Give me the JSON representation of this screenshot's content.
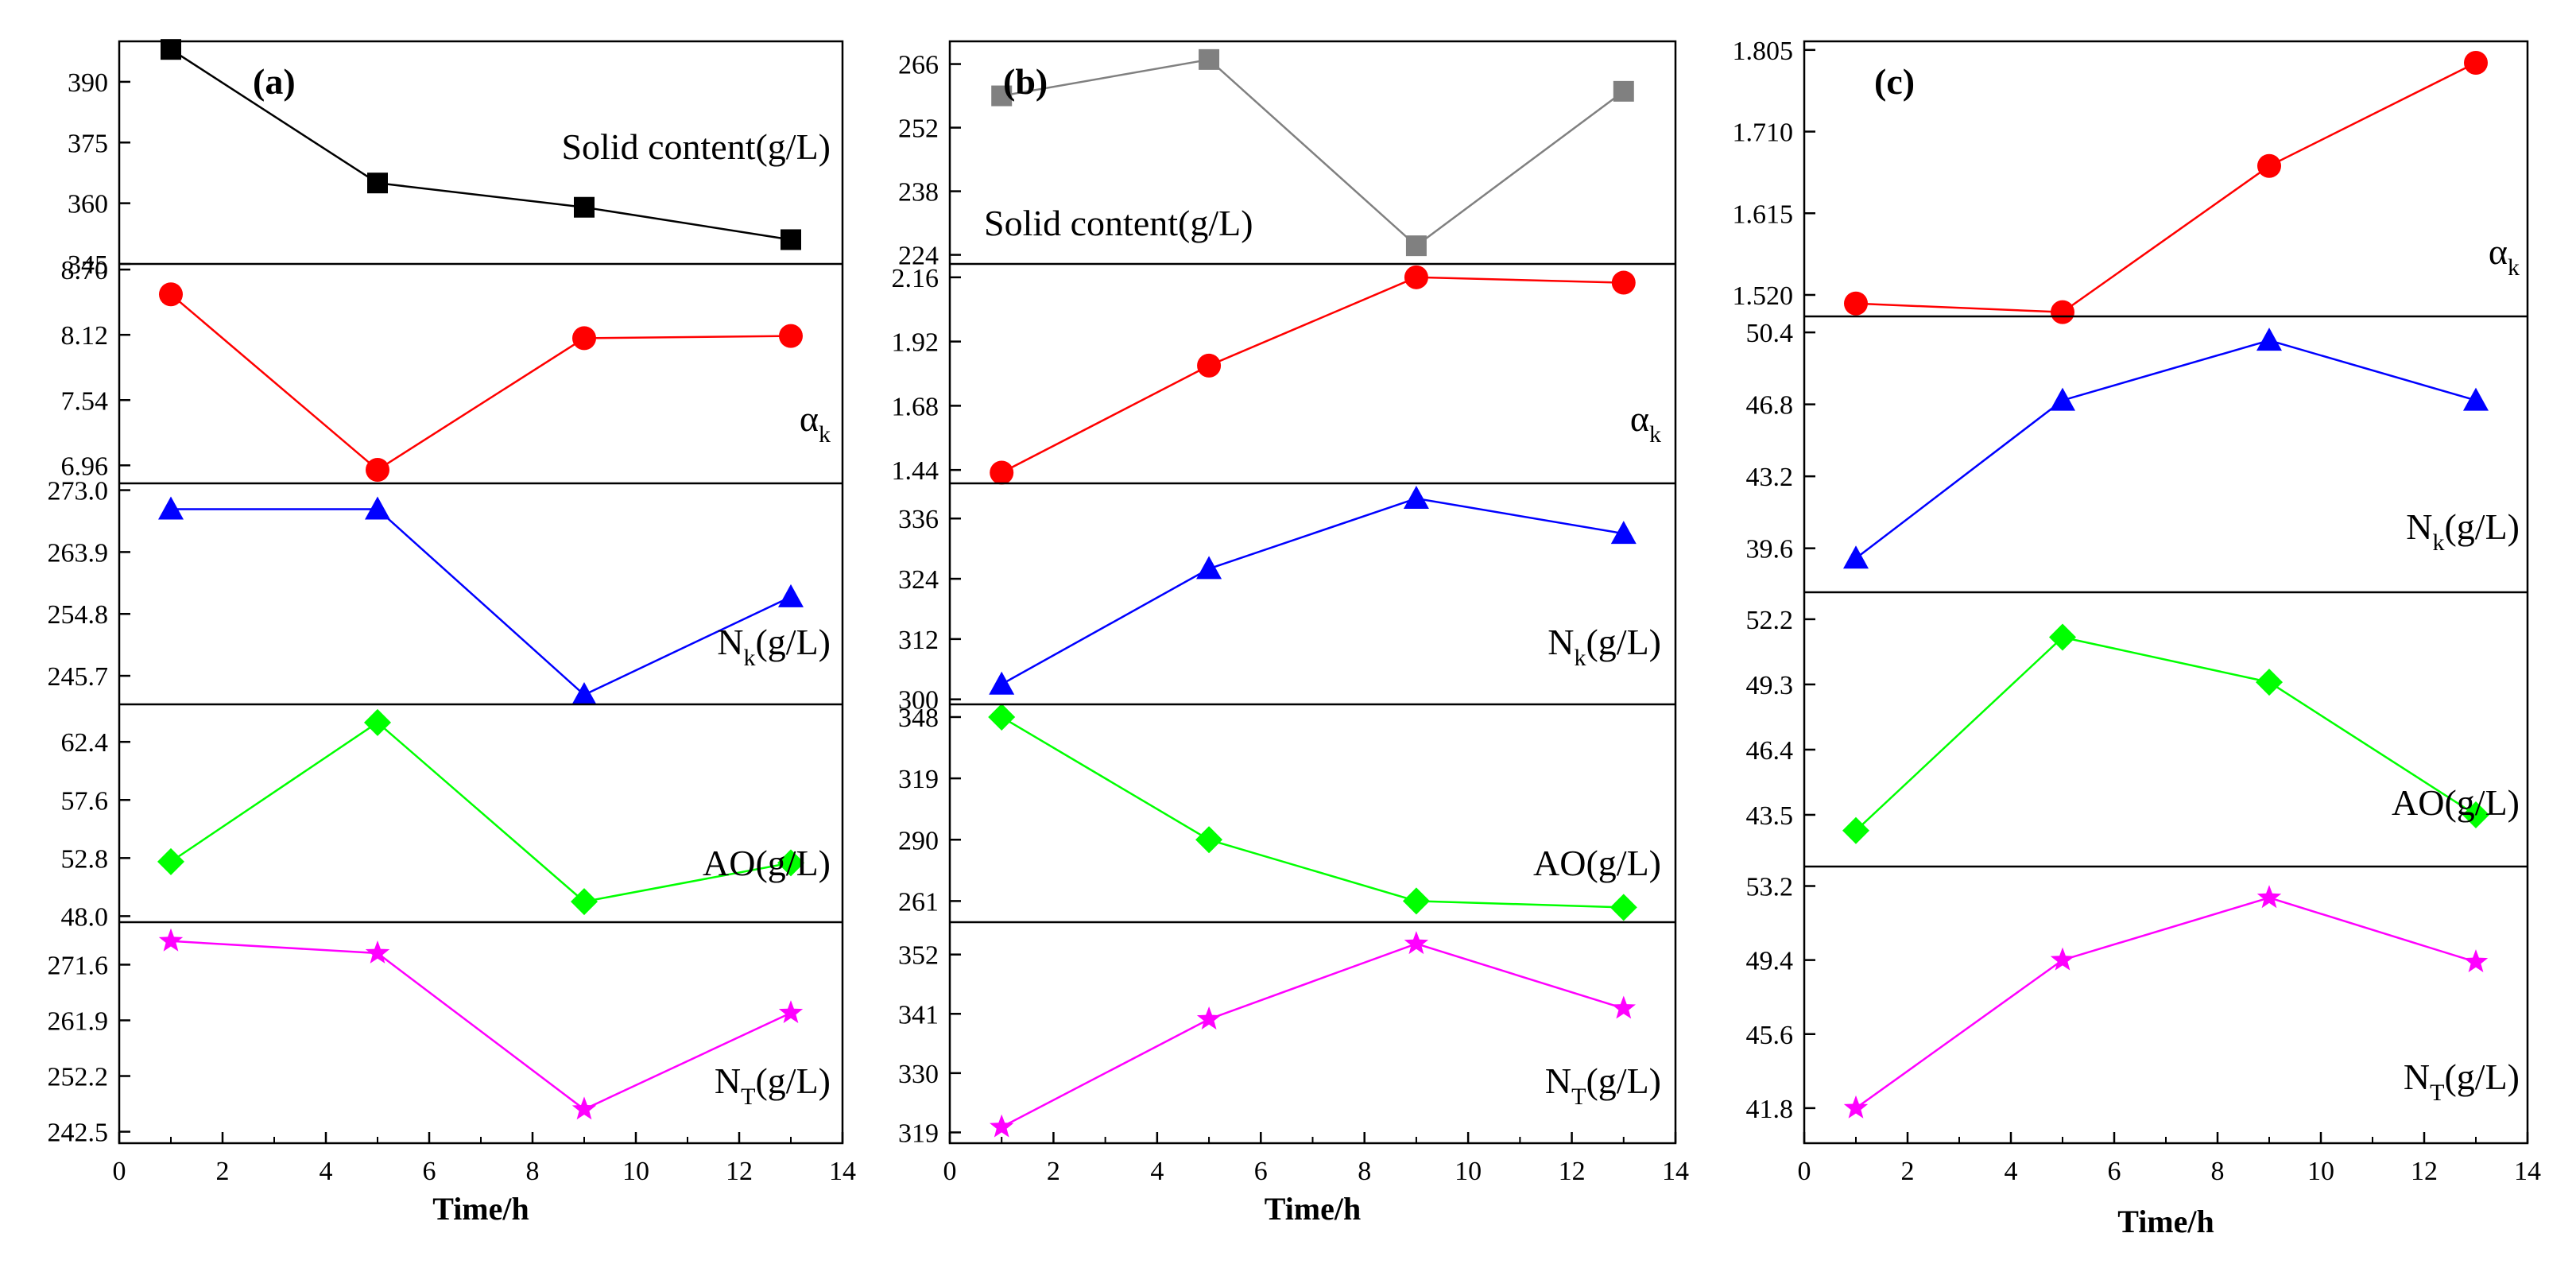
{
  "figure": {
    "xlabel": "Time/h",
    "x_ticks": [
      0,
      2,
      4,
      6,
      8,
      10,
      12,
      14
    ],
    "colors": {
      "solid": "#000000",
      "solid_b": "#808080",
      "alpha": "#ff0000",
      "nk": "#0000ff",
      "ao": "#00ff00",
      "nt": "#ff00ff"
    }
  },
  "chart_data": [
    {
      "type": "line",
      "panel": "(a)",
      "x": [
        1,
        5,
        9,
        13
      ],
      "xlim": [
        0,
        14
      ],
      "xlabel": "Time/h",
      "subplots": [
        {
          "label": "Solid content(g/L)",
          "label_pos": "right",
          "marker": "square",
          "color": "#000000",
          "values": [
            398,
            365,
            359,
            351
          ],
          "ylim": [
            345,
            400
          ],
          "yticks": [
            "345",
            "360",
            "375",
            "390"
          ]
        },
        {
          "label": "α",
          "sub": "k",
          "label_pos": "right",
          "marker": "circle",
          "color": "#ff0000",
          "values": [
            8.48,
            6.92,
            8.09,
            8.11
          ],
          "ylim": [
            6.8,
            8.75
          ],
          "yticks": [
            "6.96",
            "7.54",
            "8.12",
            "8.70"
          ]
        },
        {
          "label": "N",
          "sub": "k",
          "suffix": "(g/L)",
          "label_pos": "right",
          "marker": "triangle",
          "color": "#0000ff",
          "values": [
            270.2,
            270.2,
            242.9,
            257.3
          ],
          "ylim": [
            241.5,
            274.0
          ],
          "yticks": [
            "245.7",
            "254.8",
            "263.9",
            "273.0"
          ]
        },
        {
          "label": "AO(g/L)",
          "label_pos": "right",
          "marker": "diamond",
          "color": "#00ff00",
          "values": [
            52.5,
            64.0,
            49.2,
            52.4
          ],
          "ylim": [
            47.5,
            65.5
          ],
          "yticks": [
            "48.0",
            "52.8",
            "57.6",
            "62.4"
          ]
        },
        {
          "label": "N",
          "sub": "T",
          "suffix": "(g/L)",
          "label_pos": "right",
          "marker": "star",
          "color": "#ff00ff",
          "values": [
            275.7,
            273.6,
            246.4,
            263.2
          ],
          "ylim": [
            240.5,
            279.0
          ],
          "yticks": [
            "242.5",
            "252.2",
            "261.9",
            "271.6"
          ]
        }
      ]
    },
    {
      "type": "line",
      "panel": "(b)",
      "x": [
        1,
        5,
        9,
        13
      ],
      "xlim": [
        0,
        14
      ],
      "xlabel": "Time/h",
      "subplots": [
        {
          "label": "Solid content(g/L)",
          "label_pos": "left",
          "marker": "square",
          "color": "#808080",
          "values": [
            259,
            267,
            226,
            260
          ],
          "ylim": [
            222,
            271
          ],
          "yticks": [
            "224",
            "238",
            "252",
            "266"
          ]
        },
        {
          "label": "α",
          "sub": "k",
          "label_pos": "right",
          "marker": "circle",
          "color": "#ff0000",
          "values": [
            1.43,
            1.83,
            2.16,
            2.14
          ],
          "ylim": [
            1.39,
            2.21
          ],
          "yticks": [
            "1.44",
            "1.68",
            "1.92",
            "2.16"
          ]
        },
        {
          "label": "N",
          "sub": "k",
          "suffix": "(g/L)",
          "label_pos": "right",
          "marker": "triangle",
          "color": "#0000ff",
          "values": [
            303,
            326,
            340,
            333
          ],
          "ylim": [
            299,
            343
          ],
          "yticks": [
            "300",
            "312",
            "324",
            "336"
          ]
        },
        {
          "label": "AO(g/L)",
          "label_pos": "right",
          "marker": "diamond",
          "color": "#00ff00",
          "values": [
            348,
            290,
            261,
            258
          ],
          "ylim": [
            251,
            354
          ],
          "yticks": [
            "261",
            "290",
            "319",
            "348"
          ]
        },
        {
          "label": "N",
          "sub": "T",
          "suffix": "(g/L)",
          "label_pos": "right",
          "marker": "star",
          "color": "#ff00ff",
          "values": [
            320,
            340,
            354,
            342
          ],
          "ylim": [
            317,
            358
          ],
          "yticks": [
            "319",
            "330",
            "341",
            "352"
          ]
        }
      ]
    },
    {
      "type": "line",
      "panel": "(c)",
      "x": [
        1,
        5,
        9,
        13
      ],
      "xlim": [
        0,
        14
      ],
      "xlabel": "Time/h",
      "subplots": [
        {
          "label": "α",
          "sub": "k",
          "label_pos": "right",
          "marker": "circle",
          "color": "#ff0000",
          "values": [
            1.51,
            1.5,
            1.67,
            1.79
          ],
          "ylim": [
            1.495,
            1.815
          ],
          "yticks": [
            "1.520",
            "1.615",
            "1.710",
            "1.805"
          ]
        },
        {
          "label": "N",
          "sub": "k",
          "suffix": "(g/L)",
          "label_pos": "right",
          "marker": "triangle",
          "color": "#0000ff",
          "values": [
            39.1,
            47.0,
            50.0,
            47.0
          ],
          "ylim": [
            37.4,
            51.2
          ],
          "yticks": [
            "39.6",
            "43.2",
            "46.8",
            "50.4"
          ]
        },
        {
          "label": "AO(g/L)",
          "label_pos": "right",
          "marker": "diamond",
          "color": "#00ff00",
          "values": [
            42.8,
            51.4,
            49.4,
            43.5
          ],
          "ylim": [
            41.2,
            53.4
          ],
          "yticks": [
            "43.5",
            "46.4",
            "49.3",
            "52.2"
          ]
        },
        {
          "label": "N",
          "sub": "T",
          "suffix": "(g/L)",
          "label_pos": "right",
          "marker": "star",
          "color": "#ff00ff",
          "values": [
            41.8,
            49.4,
            52.6,
            49.3
          ],
          "ylim": [
            40.0,
            54.2
          ],
          "yticks": [
            "41.8",
            "45.6",
            "49.4",
            "53.2"
          ]
        }
      ]
    }
  ]
}
